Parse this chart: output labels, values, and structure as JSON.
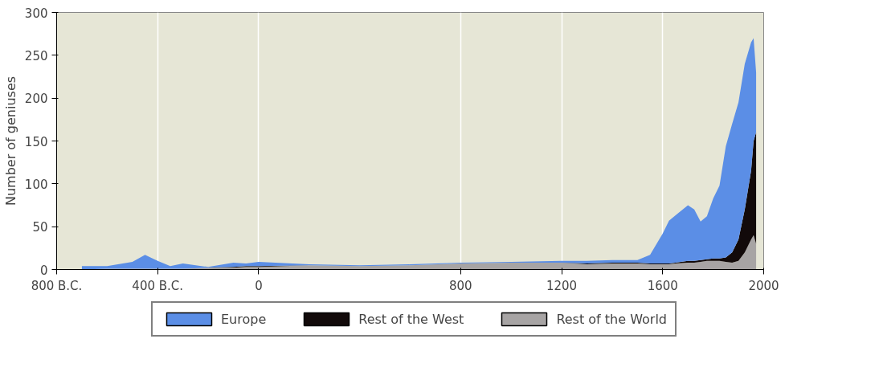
{
  "chart_data": {
    "type": "area",
    "stacked": true,
    "ylabel": "Number of geniuses",
    "x": [
      -700,
      -600,
      -500,
      -450,
      -400,
      -350,
      -300,
      -200,
      -100,
      -50,
      0,
      200,
      400,
      600,
      800,
      1000,
      1200,
      1300,
      1400,
      1500,
      1550,
      1600,
      1625,
      1650,
      1700,
      1725,
      1750,
      1775,
      1800,
      1825,
      1850,
      1875,
      1900,
      1925,
      1950,
      1960,
      1970
    ],
    "series": [
      {
        "name": "Rest of the World",
        "color": "#a7a4a4",
        "values": [
          0,
          1,
          1,
          1,
          1,
          1,
          1,
          2,
          2,
          3,
          3,
          5,
          4,
          5,
          7,
          8,
          8,
          6,
          7,
          7,
          6,
          6,
          6,
          7,
          8,
          8,
          9,
          10,
          10,
          10,
          9,
          8,
          10,
          20,
          35,
          40,
          30
        ]
      },
      {
        "name": "Rest of the West",
        "color": "#120a0a",
        "values": [
          0,
          0,
          0,
          0,
          0,
          0,
          0,
          0,
          1,
          1,
          1,
          0,
          0,
          0,
          0,
          0,
          0,
          1,
          1,
          1,
          1,
          1,
          1,
          1,
          2,
          2,
          2,
          2,
          3,
          3,
          5,
          12,
          25,
          50,
          80,
          110,
          130
        ]
      },
      {
        "name": "Europe",
        "color": "#5b8ee6",
        "values": [
          4,
          3,
          8,
          16,
          9,
          3,
          6,
          1,
          5,
          3,
          5,
          1,
          1,
          1,
          1,
          1,
          2,
          3,
          3,
          3,
          10,
          35,
          50,
          55,
          65,
          60,
          45,
          50,
          70,
          85,
          130,
          150,
          160,
          170,
          150,
          120,
          70
        ]
      }
    ],
    "xlim": [
      -800,
      2000
    ],
    "ylim": [
      0,
      300
    ],
    "xticks": [
      {
        "value": -800,
        "label": "800 B.C."
      },
      {
        "value": -400,
        "label": "400 B.C."
      },
      0,
      800,
      1200,
      1600,
      2000
    ],
    "yticks": [
      0,
      50,
      100,
      150,
      200,
      250,
      300
    ],
    "grid": "x",
    "legend": "bottom"
  }
}
